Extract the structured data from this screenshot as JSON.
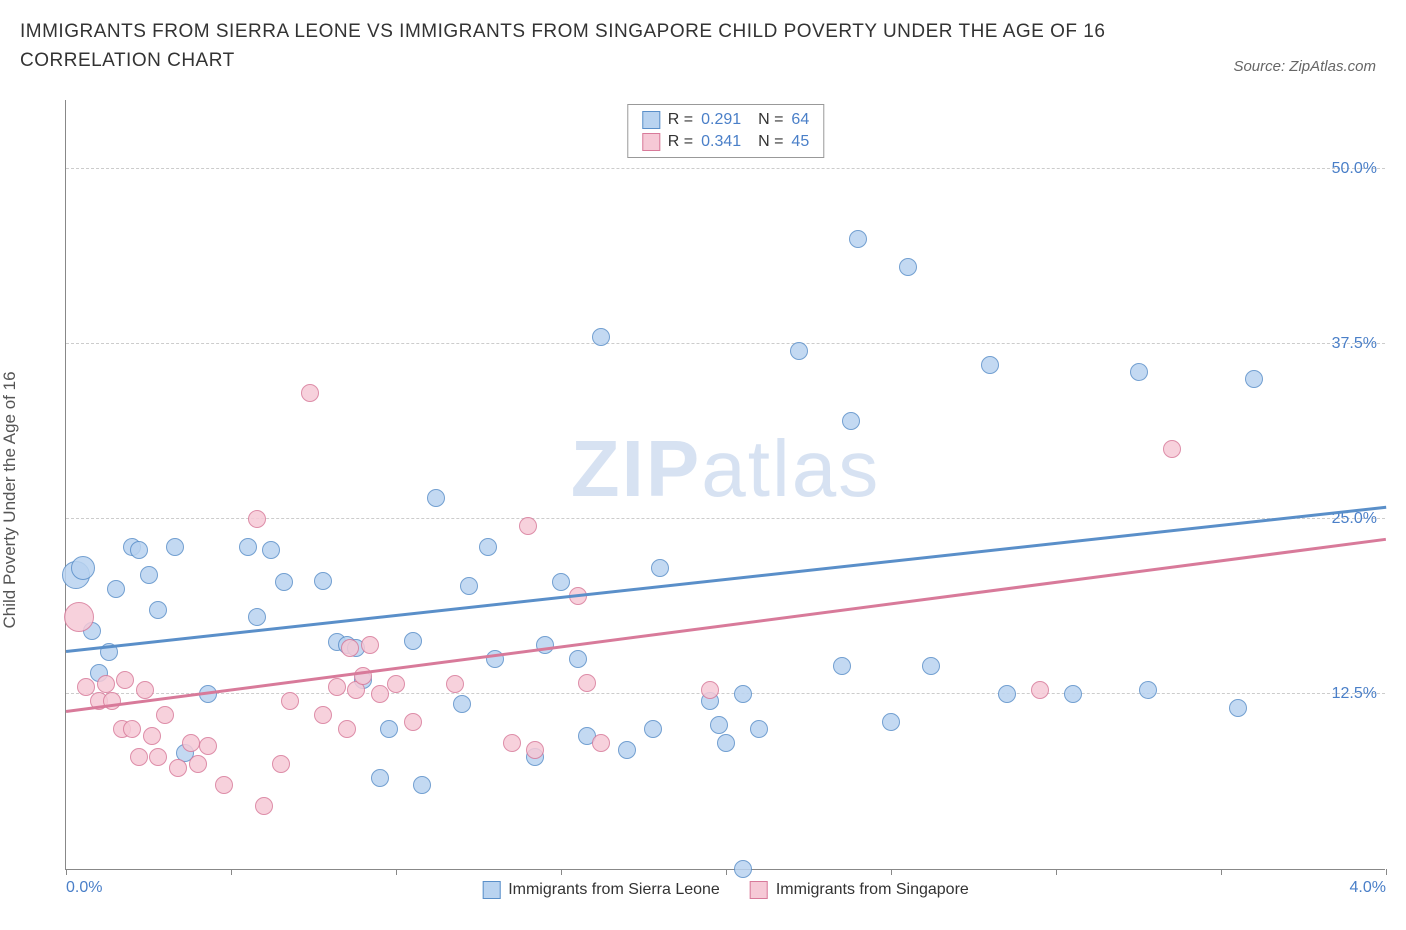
{
  "title": "IMMIGRANTS FROM SIERRA LEONE VS IMMIGRANTS FROM SINGAPORE CHILD POVERTY UNDER THE AGE OF 16 CORRELATION CHART",
  "source": "Source: ZipAtlas.com",
  "ylabel": "Child Poverty Under the Age of 16",
  "watermark_bold": "ZIP",
  "watermark_light": "atlas",
  "series": [
    {
      "key": "sierra_leone",
      "label": "Immigrants from Sierra Leone",
      "color_fill": "#b9d3f0",
      "color_stroke": "#5a8fc9",
      "R": "0.291",
      "N": "64",
      "trend": {
        "y_at_x0": 15.5,
        "y_at_xmax": 25.8
      }
    },
    {
      "key": "singapore",
      "label": "Immigrants from Singapore",
      "color_fill": "#f6c9d6",
      "color_stroke": "#d87a9a",
      "R": "0.341",
      "N": "45",
      "trend": {
        "y_at_x0": 11.2,
        "y_at_xmax": 23.5
      }
    }
  ],
  "axes": {
    "x": {
      "min": 0.0,
      "max": 4.0,
      "ticks": [
        0.0,
        0.5,
        1.0,
        1.5,
        2.0,
        2.5,
        3.0,
        3.5,
        4.0
      ],
      "labeled": {
        "0.0": "0.0%",
        "4.0": "4.0%"
      }
    },
    "y": {
      "min": 0.0,
      "max": 55.0,
      "gridlines": [
        12.5,
        25.0,
        37.5,
        50.0
      ],
      "labels": [
        "12.5%",
        "25.0%",
        "37.5%",
        "50.0%"
      ]
    }
  },
  "grid_color": "#cccccc",
  "background_color": "#ffffff",
  "marker_default_r": 9,
  "points": {
    "sierra_leone": [
      {
        "x": 0.03,
        "y": 21.0,
        "r": 14
      },
      {
        "x": 0.05,
        "y": 21.5,
        "r": 12
      },
      {
        "x": 0.08,
        "y": 17.0
      },
      {
        "x": 0.1,
        "y": 14.0
      },
      {
        "x": 0.13,
        "y": 15.5
      },
      {
        "x": 0.15,
        "y": 20.0
      },
      {
        "x": 0.2,
        "y": 23.0
      },
      {
        "x": 0.22,
        "y": 22.8
      },
      {
        "x": 0.25,
        "y": 21.0
      },
      {
        "x": 0.28,
        "y": 18.5
      },
      {
        "x": 0.33,
        "y": 23.0
      },
      {
        "x": 0.36,
        "y": 8.3
      },
      {
        "x": 0.43,
        "y": 12.5
      },
      {
        "x": 0.55,
        "y": 23.0
      },
      {
        "x": 0.58,
        "y": 18.0
      },
      {
        "x": 0.62,
        "y": 22.8
      },
      {
        "x": 0.66,
        "y": 20.5
      },
      {
        "x": 0.78,
        "y": 20.6
      },
      {
        "x": 0.82,
        "y": 16.2
      },
      {
        "x": 0.85,
        "y": 16.0
      },
      {
        "x": 0.88,
        "y": 15.8
      },
      {
        "x": 0.9,
        "y": 13.5
      },
      {
        "x": 0.95,
        "y": 6.5
      },
      {
        "x": 0.98,
        "y": 10.0
      },
      {
        "x": 1.05,
        "y": 16.3
      },
      {
        "x": 1.08,
        "y": 6.0
      },
      {
        "x": 1.12,
        "y": 26.5
      },
      {
        "x": 1.2,
        "y": 11.8
      },
      {
        "x": 1.22,
        "y": 20.2
      },
      {
        "x": 1.28,
        "y": 23.0
      },
      {
        "x": 1.3,
        "y": 15.0
      },
      {
        "x": 1.42,
        "y": 8.0
      },
      {
        "x": 1.45,
        "y": 16.0
      },
      {
        "x": 1.5,
        "y": 20.5
      },
      {
        "x": 1.55,
        "y": 15.0
      },
      {
        "x": 1.58,
        "y": 9.5
      },
      {
        "x": 1.62,
        "y": 38.0
      },
      {
        "x": 1.7,
        "y": 8.5
      },
      {
        "x": 1.78,
        "y": 10.0
      },
      {
        "x": 1.8,
        "y": 21.5
      },
      {
        "x": 1.95,
        "y": 12.0
      },
      {
        "x": 1.98,
        "y": 10.3
      },
      {
        "x": 2.0,
        "y": 9.0
      },
      {
        "x": 2.05,
        "y": 12.5
      },
      {
        "x": 2.05,
        "y": 0.0
      },
      {
        "x": 2.1,
        "y": 10.0
      },
      {
        "x": 2.22,
        "y": 37.0
      },
      {
        "x": 2.35,
        "y": 14.5
      },
      {
        "x": 2.38,
        "y": 32.0
      },
      {
        "x": 2.4,
        "y": 45.0
      },
      {
        "x": 2.5,
        "y": 10.5
      },
      {
        "x": 2.55,
        "y": 43.0
      },
      {
        "x": 2.62,
        "y": 14.5
      },
      {
        "x": 2.8,
        "y": 36.0
      },
      {
        "x": 2.85,
        "y": 12.5
      },
      {
        "x": 3.05,
        "y": 12.5
      },
      {
        "x": 3.25,
        "y": 35.5
      },
      {
        "x": 3.28,
        "y": 12.8
      },
      {
        "x": 3.55,
        "y": 11.5
      },
      {
        "x": 3.6,
        "y": 35.0
      }
    ],
    "singapore": [
      {
        "x": 0.04,
        "y": 18.0,
        "r": 15
      },
      {
        "x": 0.06,
        "y": 13.0
      },
      {
        "x": 0.1,
        "y": 12.0
      },
      {
        "x": 0.12,
        "y": 13.2
      },
      {
        "x": 0.14,
        "y": 12.0
      },
      {
        "x": 0.17,
        "y": 10.0
      },
      {
        "x": 0.18,
        "y": 13.5
      },
      {
        "x": 0.2,
        "y": 10.0
      },
      {
        "x": 0.22,
        "y": 8.0
      },
      {
        "x": 0.24,
        "y": 12.8
      },
      {
        "x": 0.26,
        "y": 9.5
      },
      {
        "x": 0.28,
        "y": 8.0
      },
      {
        "x": 0.3,
        "y": 11.0
      },
      {
        "x": 0.34,
        "y": 7.2
      },
      {
        "x": 0.38,
        "y": 9.0
      },
      {
        "x": 0.4,
        "y": 7.5
      },
      {
        "x": 0.43,
        "y": 8.8
      },
      {
        "x": 0.48,
        "y": 6.0
      },
      {
        "x": 0.58,
        "y": 25.0
      },
      {
        "x": 0.6,
        "y": 4.5
      },
      {
        "x": 0.65,
        "y": 7.5
      },
      {
        "x": 0.68,
        "y": 12.0
      },
      {
        "x": 0.74,
        "y": 34.0
      },
      {
        "x": 0.78,
        "y": 11.0
      },
      {
        "x": 0.82,
        "y": 13.0
      },
      {
        "x": 0.85,
        "y": 10.0
      },
      {
        "x": 0.86,
        "y": 15.8
      },
      {
        "x": 0.88,
        "y": 12.8
      },
      {
        "x": 0.9,
        "y": 13.8
      },
      {
        "x": 0.92,
        "y": 16.0
      },
      {
        "x": 0.95,
        "y": 12.5
      },
      {
        "x": 1.0,
        "y": 13.2
      },
      {
        "x": 1.05,
        "y": 10.5
      },
      {
        "x": 1.18,
        "y": 13.2
      },
      {
        "x": 1.35,
        "y": 9.0
      },
      {
        "x": 1.4,
        "y": 24.5
      },
      {
        "x": 1.42,
        "y": 8.5
      },
      {
        "x": 1.55,
        "y": 19.5
      },
      {
        "x": 1.58,
        "y": 13.3
      },
      {
        "x": 1.62,
        "y": 9.0
      },
      {
        "x": 1.95,
        "y": 12.8
      },
      {
        "x": 2.95,
        "y": 12.8
      },
      {
        "x": 3.35,
        "y": 30.0
      }
    ]
  }
}
